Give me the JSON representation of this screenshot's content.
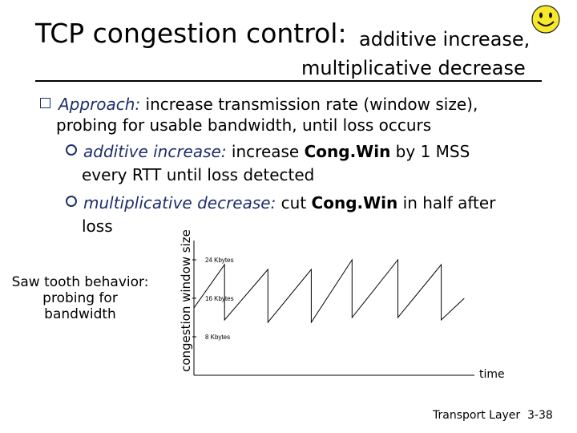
{
  "title": {
    "main": "TCP congestion control:",
    "sub1": "additive increase,",
    "sub2": "multiplicative decrease"
  },
  "bullets": {
    "approach_label": "Approach:",
    "approach_text_1": " increase transmission rate (window size),",
    "approach_text_2": "probing for usable bandwidth, until loss occurs",
    "additive_label": "additive increase:",
    "additive_text_a": " increase ",
    "additive_congwin": "Cong.Win",
    "additive_text_b": " by 1 MSS",
    "additive_text_2": "every RTT until loss detected",
    "mult_label": "multiplicative decrease:",
    "mult_text_a": " cut ",
    "mult_congwin": "Cong.Win",
    "mult_text_b": " in half after",
    "mult_text_2": "loss"
  },
  "side_note": "Saw tooth behavior: probing for bandwidth",
  "footer": {
    "left": "Transport Layer",
    "right": "3-38"
  },
  "icons": {
    "smiley": "smiley-face-icon",
    "bullet_square": "square-bullet-icon",
    "bullet_round": "round-bullet-icon"
  },
  "colors": {
    "text": "#000000",
    "bullet_blue": "#1f2e6b",
    "smiley_fill": "#f7e92a"
  },
  "chart_data": {
    "type": "line",
    "title": "",
    "xlabel": "time",
    "ylabel": "congestion window size",
    "y_ticks": [
      {
        "value": 8,
        "label": "8 Kbytes"
      },
      {
        "value": 16,
        "label": "16 Kbytes"
      },
      {
        "value": 24,
        "label": "24 Kbytes"
      }
    ],
    "ylim": [
      0,
      28
    ],
    "xlim": [
      0,
      11
    ],
    "grid": false,
    "series": [
      {
        "x": [
          0,
          1.2,
          1.2,
          2.9,
          2.9,
          4.6,
          4.6,
          6.2,
          6.2,
          8.0,
          8.0,
          9.7,
          9.7,
          10.6
        ],
        "y": [
          14,
          23,
          11.5,
          22,
          11,
          22,
          11,
          24,
          12,
          24,
          12,
          23,
          11.5,
          16
        ]
      }
    ]
  }
}
